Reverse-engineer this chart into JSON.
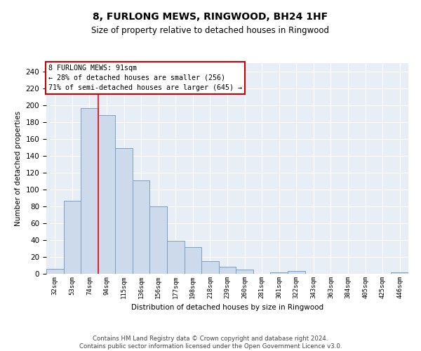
{
  "title": "8, FURLONG MEWS, RINGWOOD, BH24 1HF",
  "subtitle": "Size of property relative to detached houses in Ringwood",
  "xlabel": "Distribution of detached houses by size in Ringwood",
  "ylabel": "Number of detached properties",
  "bar_color": "#ccdaeb",
  "bar_edge_color": "#7a9fc0",
  "categories": [
    "32sqm",
    "53sqm",
    "74sqm",
    "94sqm",
    "115sqm",
    "136sqm",
    "156sqm",
    "177sqm",
    "198sqm",
    "218sqm",
    "239sqm",
    "260sqm",
    "281sqm",
    "301sqm",
    "322sqm",
    "343sqm",
    "363sqm",
    "384sqm",
    "405sqm",
    "425sqm",
    "446sqm"
  ],
  "values": [
    6,
    87,
    197,
    188,
    149,
    111,
    80,
    39,
    32,
    15,
    8,
    5,
    0,
    2,
    3,
    0,
    0,
    0,
    0,
    0,
    2
  ],
  "red_line_x": 2.5,
  "annotation_line1": "8 FURLONG MEWS: 91sqm",
  "annotation_line2": "← 28% of detached houses are smaller (256)",
  "annotation_line3": "71% of semi-detached houses are larger (645) →",
  "annotation_box_color": "#ffffff",
  "annotation_box_edge": "#cc0000",
  "footer1": "Contains HM Land Registry data © Crown copyright and database right 2024.",
  "footer2": "Contains public sector information licensed under the Open Government Licence v3.0.",
  "ylim": [
    0,
    250
  ],
  "yticks": [
    0,
    20,
    40,
    60,
    80,
    100,
    120,
    140,
    160,
    180,
    200,
    220,
    240
  ],
  "bg_color": "#e8eef5"
}
